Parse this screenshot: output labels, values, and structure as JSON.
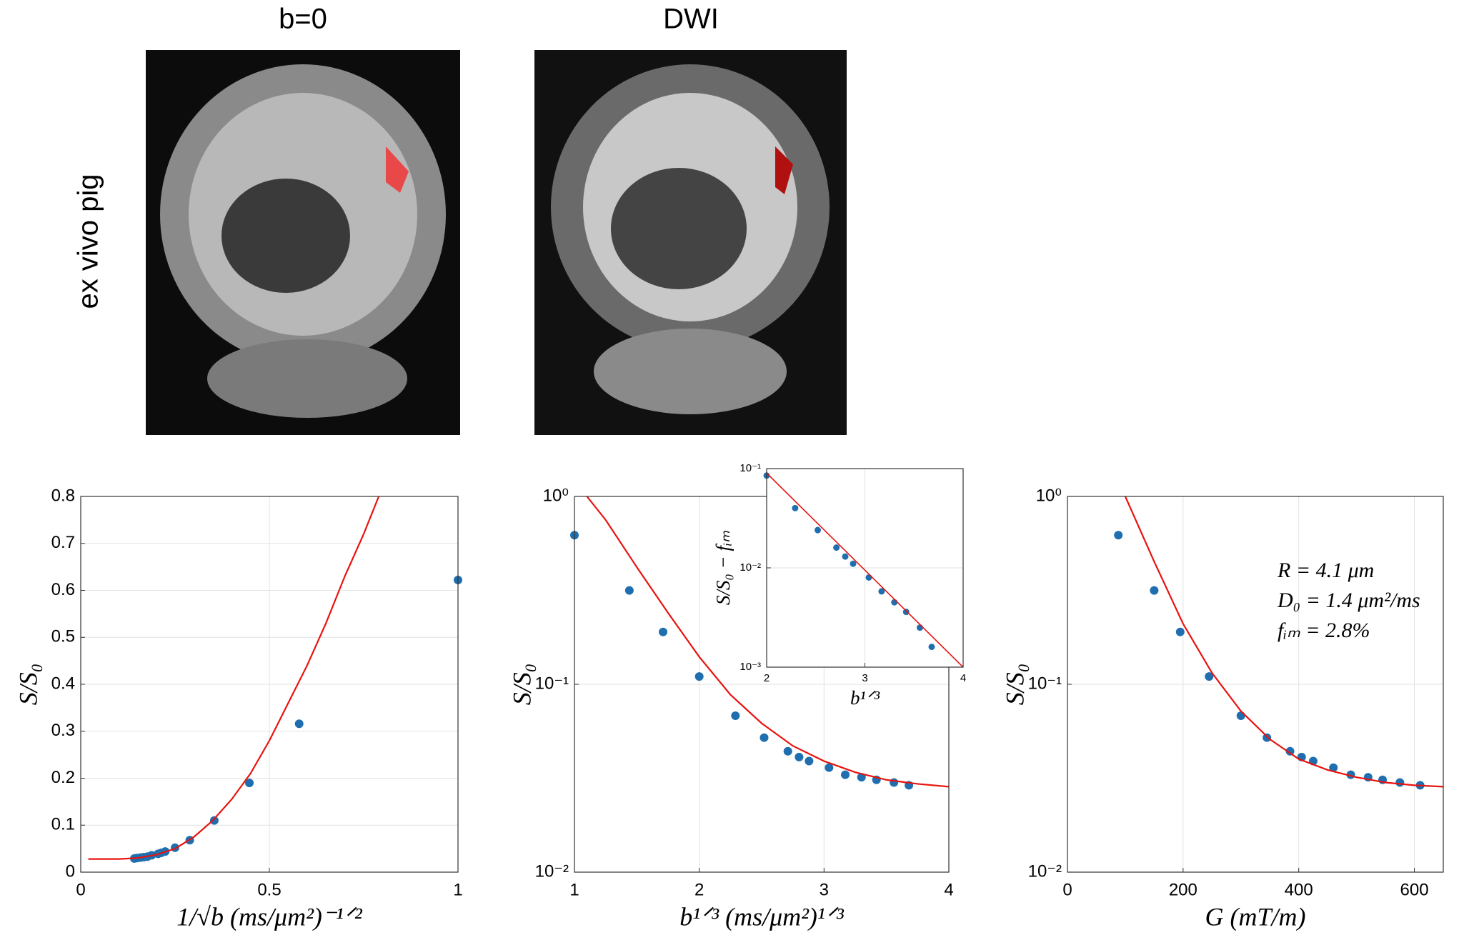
{
  "images": [
    {
      "title": "b=0"
    },
    {
      "title": "DWI"
    }
  ],
  "row_label": "ex vivo pig",
  "chart_data": [
    {
      "type": "scatter",
      "xlabel": "1/√b (ms/μm²)⁻¹ᐟ²",
      "ylabel": "S/S₀",
      "xlim": [
        0,
        1
      ],
      "xticks": [
        0,
        0.5,
        1
      ],
      "ylim": [
        0,
        0.8
      ],
      "yticks": [
        0,
        0.1,
        0.2,
        0.3,
        0.4,
        0.5,
        0.6,
        0.7,
        0.8
      ],
      "grid": true,
      "log_y": false,
      "series": [
        {
          "type": "scatter",
          "color": "#1f6fb0",
          "x": [
            1,
            0.579,
            0.447,
            0.354,
            0.289,
            0.25,
            0.224,
            0.213,
            0.205,
            0.188,
            0.177,
            0.167,
            0.158,
            0.149,
            0.142
          ],
          "values": [
            0.622,
            0.316,
            0.19,
            0.11,
            0.068,
            0.052,
            0.044,
            0.041,
            0.039,
            0.036,
            0.033,
            0.032,
            0.031,
            0.03,
            0.029
          ]
        },
        {
          "type": "line",
          "color": "#e8130f",
          "x": [
            0.02,
            0.1,
            0.15,
            0.2,
            0.25,
            0.3,
            0.35,
            0.4,
            0.45,
            0.5,
            0.55,
            0.6,
            0.65,
            0.7,
            0.75,
            0.79
          ],
          "values": [
            0.028,
            0.028,
            0.03,
            0.037,
            0.05,
            0.075,
            0.11,
            0.155,
            0.21,
            0.28,
            0.36,
            0.44,
            0.53,
            0.63,
            0.72,
            0.8
          ]
        }
      ]
    },
    {
      "type": "scatter",
      "xlabel": "b¹ᐟ³ (ms/μm²)¹ᐟ³",
      "ylabel": "S/S₀",
      "xlim": [
        1,
        4
      ],
      "xticks": [
        1,
        2,
        3,
        4
      ],
      "ylim": [
        0.01,
        1
      ],
      "yticks": [
        {
          "value": 0.01,
          "label": "10⁻²"
        },
        {
          "value": 0.1,
          "label": "10⁻¹"
        },
        {
          "value": 1,
          "label": "10⁰"
        }
      ],
      "grid": true,
      "log_y": true,
      "series": [
        {
          "type": "scatter",
          "color": "#1f6fb0",
          "x": [
            1,
            1.44,
            1.71,
            2,
            2.29,
            2.52,
            2.71,
            2.8,
            2.88,
            3.04,
            3.17,
            3.3,
            3.42,
            3.56,
            3.68
          ],
          "values": [
            0.622,
            0.316,
            0.19,
            0.11,
            0.068,
            0.052,
            0.044,
            0.041,
            0.039,
            0.036,
            0.033,
            0.032,
            0.031,
            0.03,
            0.029
          ]
        },
        {
          "type": "line",
          "color": "#e8130f",
          "x": [
            1.1,
            1.25,
            1.5,
            1.75,
            2,
            2.25,
            2.5,
            2.75,
            3,
            3.25,
            3.5,
            3.75,
            4
          ],
          "values": [
            1.0,
            0.75,
            0.42,
            0.24,
            0.14,
            0.088,
            0.062,
            0.047,
            0.039,
            0.034,
            0.031,
            0.0295,
            0.0285
          ]
        }
      ]
    },
    {
      "type": "scatter",
      "xlabel": "G (mT/m)",
      "ylabel": "S/S₀",
      "xlim": [
        0,
        650
      ],
      "xticks": [
        0,
        200,
        400,
        600
      ],
      "ylim": [
        0.01,
        1
      ],
      "yticks": [
        {
          "value": 0.01,
          "label": "10⁻²"
        },
        {
          "value": 0.1,
          "label": "10⁻¹"
        },
        {
          "value": 1,
          "label": "10⁰"
        }
      ],
      "grid": true,
      "log_y": true,
      "annotations": [
        "R = 4.1 μm",
        "D₀ = 1.4 μm²/ms",
        "fᵢₘ = 2.8%"
      ],
      "series": [
        {
          "type": "scatter",
          "color": "#1f6fb0",
          "x": [
            88,
            150,
            195,
            245,
            300,
            345,
            385,
            405,
            425,
            460,
            490,
            520,
            545,
            575,
            610
          ],
          "values": [
            0.622,
            0.316,
            0.19,
            0.11,
            0.068,
            0.052,
            0.044,
            0.041,
            0.039,
            0.036,
            0.033,
            0.032,
            0.031,
            0.03,
            0.029
          ]
        },
        {
          "type": "line",
          "color": "#e8130f",
          "x": [
            100,
            150,
            200,
            250,
            300,
            350,
            400,
            450,
            500,
            550,
            600,
            650
          ],
          "values": [
            1.0,
            0.45,
            0.21,
            0.115,
            0.072,
            0.051,
            0.04,
            0.035,
            0.032,
            0.03,
            0.029,
            0.0285
          ]
        }
      ]
    },
    {
      "type": "scatter",
      "xlabel": "b¹ᐟ³",
      "ylabel": "S/S₀ − fᵢₘ",
      "xlim": [
        2,
        4
      ],
      "xticks": [
        2,
        3,
        4
      ],
      "ylim": [
        0.001,
        0.1
      ],
      "yticks": [
        {
          "value": 0.001,
          "label": "10⁻³"
        },
        {
          "value": 0.01,
          "label": "10⁻²"
        },
        {
          "value": 0.1,
          "label": "10⁻¹"
        }
      ],
      "grid": true,
      "log_y": true,
      "series": [
        {
          "type": "scatter",
          "color": "#1f6fb0",
          "x": [
            2,
            2.29,
            2.52,
            2.71,
            2.8,
            2.88,
            3.04,
            3.17,
            3.3,
            3.42,
            3.56,
            3.68
          ],
          "values": [
            0.085,
            0.04,
            0.024,
            0.016,
            0.013,
            0.011,
            0.008,
            0.0058,
            0.0045,
            0.0036,
            0.0025,
            0.0016
          ]
        },
        {
          "type": "line",
          "color": "#e8130f",
          "x": [
            2,
            4
          ],
          "values": [
            0.09,
            0.001
          ]
        }
      ]
    }
  ]
}
